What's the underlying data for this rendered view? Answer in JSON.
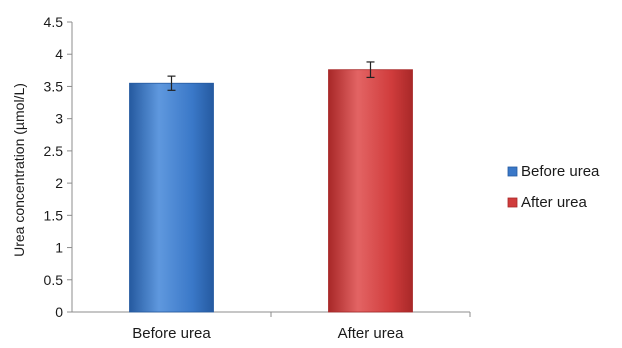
{
  "chart_data": {
    "type": "bar",
    "categories": [
      "Before urea",
      "After urea"
    ],
    "values": [
      3.55,
      3.76
    ],
    "errors": [
      0.11,
      0.12
    ],
    "colors": [
      "#3a78c8",
      "#d03c3c"
    ],
    "colors_light": [
      "#5f98de",
      "#e36464"
    ],
    "colors_dark": [
      "#255aa0",
      "#a82828"
    ],
    "xlabel": "",
    "ylabel": "Urea concentration (µmol/L)",
    "ylim": [
      0,
      4.5
    ],
    "yticks": [
      0,
      0.5,
      1,
      1.5,
      2,
      2.5,
      3,
      3.5,
      4,
      4.5
    ],
    "ytick_labels": [
      "0",
      "0.5",
      "1",
      "1.5",
      "2",
      "2.5",
      "3",
      "3.5",
      "4",
      "4.5"
    ],
    "grid": false,
    "legend": {
      "position": "right",
      "entries": [
        {
          "label": "Before urea",
          "color": "#3a78c8"
        },
        {
          "label": "After urea",
          "color": "#d03c3c"
        }
      ]
    }
  }
}
